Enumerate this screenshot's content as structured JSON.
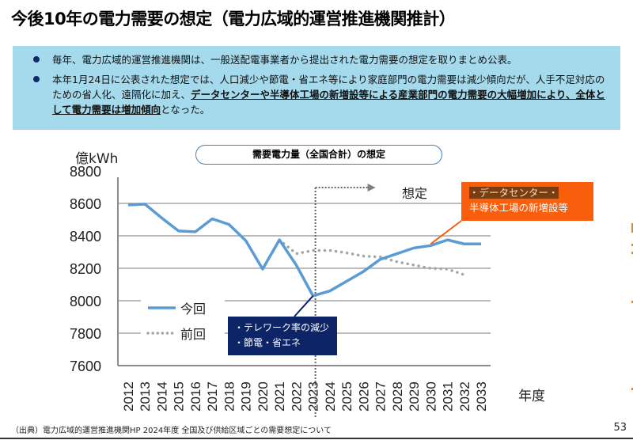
{
  "header": {
    "title": "今後10年の電力需要の想定（電力広域的運営推進機関推計）"
  },
  "info": {
    "bullet1": "毎年、電力広域的運営推進機関は、一般送配電事業者から提出された電力需要の想定を取りまとめ公表。",
    "bullet2_pre": "本年1月24日に公表された想定では、人口減少や節電・省エネ等により家庭部門の電力需要は減少傾向だが、人手不足対応のための省人化、遠隔化に加え、",
    "bullet2_emphasis": "データセンターや半導体工場の新増設等による産業部門の電力需要の大幅増加により、全体として電力需要は増加傾向",
    "bullet2_post": "となった。"
  },
  "annotations": {
    "forecast_label": "想定",
    "orange_callout_line1_hl": "・データセンター・",
    "orange_callout_line2": "半導体工場の新増設等",
    "navy_callout_line1": "・テレワーク率の減少",
    "navy_callout_line2": "・節電・省エネ"
  },
  "colors": {
    "current": "#5b9bd5",
    "previous": "#a6a6a6",
    "orange": "#f85e0c",
    "navy": "#0d2467",
    "info_bg": "#a5d9ec"
  },
  "chart_data": {
    "type": "line",
    "title": "需要電力量（全国合計）の想定",
    "ylabel": "億kWh",
    "xlabel": "年度",
    "ylim": [
      7600,
      8800
    ],
    "yticks": [
      "8800",
      "8600",
      "8400",
      "8200",
      "8000",
      "7800",
      "7600"
    ],
    "grid": true,
    "legend_position": "bottom-left",
    "x": [
      "2012",
      "2013",
      "2014",
      "2015",
      "2016",
      "2017",
      "2018",
      "2019",
      "2020",
      "2021",
      "2022",
      "2023",
      "2024",
      "2025",
      "2026",
      "2027",
      "2028",
      "2029",
      "2030",
      "2031",
      "2032",
      "2033"
    ],
    "series": [
      {
        "name": "今回",
        "style": "solid",
        "values": [
          8590,
          8595,
          8510,
          8430,
          8425,
          8505,
          8470,
          8370,
          8195,
          8375,
          8220,
          8030,
          8060,
          8120,
          8180,
          8255,
          8290,
          8325,
          8340,
          8375,
          8350,
          8350
        ]
      },
      {
        "name": "前回",
        "style": "dotted",
        "values": [
          null,
          null,
          null,
          null,
          null,
          null,
          null,
          null,
          null,
          8375,
          8290,
          8310,
          8310,
          8295,
          8275,
          8270,
          8240,
          8220,
          8200,
          8195,
          8160,
          null
        ]
      }
    ]
  },
  "footer": {
    "source": "（出典）電力広域的運営推進機関HP 2024年度  全国及び供給区域ごとの需要想定について",
    "page": "53"
  }
}
